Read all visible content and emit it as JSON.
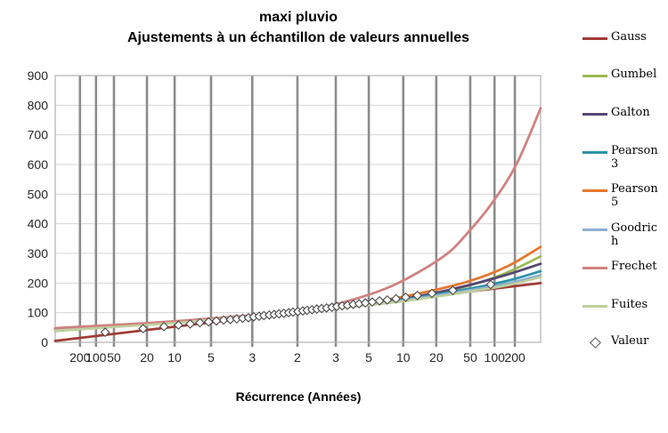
{
  "page": {
    "title_line1": "maxi pluvio",
    "title_line2": "Ajustements à un échantillon de valeurs annuelles",
    "xaxis_title": "Récurrence (Années)"
  },
  "style": {
    "h_grid_color": "#d4d4d4",
    "v_grid_color": "#8c8c8c",
    "border_color": "#b0b0b0",
    "tick_label_color": "#262626",
    "marker_stroke": "#4a4a4a",
    "marker_fill": "#ffffff"
  },
  "chart_data": {
    "type": "line",
    "title": "maxi pluvio",
    "subtitle": "Ajustements à un échantillon de valeurs annuelles",
    "xlabel": "Récurrence (Années)",
    "ylabel": "",
    "ylim": [
      0,
      900
    ],
    "ytick_step": 100,
    "grid": true,
    "legend_position": "right",
    "x_axis_type": "return-period-probability-scale",
    "x_ticks": [
      {
        "label": "200",
        "f": 0.051
      },
      {
        "label": "100",
        "f": 0.084
      },
      {
        "label": "50",
        "f": 0.121
      },
      {
        "label": "20",
        "f": 0.189
      },
      {
        "label": "10",
        "f": 0.246
      },
      {
        "label": "5",
        "f": 0.321
      },
      {
        "label": "3",
        "f": 0.406
      },
      {
        "label": "2",
        "f": 0.499
      },
      {
        "label": "3",
        "f": 0.578
      },
      {
        "label": "5",
        "f": 0.646
      },
      {
        "label": "10",
        "f": 0.717
      },
      {
        "label": "20",
        "f": 0.785
      },
      {
        "label": "50",
        "f": 0.855
      },
      {
        "label": "100",
        "f": 0.905
      },
      {
        "label": "200",
        "f": 0.947
      }
    ],
    "series": [
      {
        "name": "Gauss",
        "color": "#A03C36",
        "width": 2.8,
        "points": [
          [
            0,
            5
          ],
          [
            0.5,
            102
          ],
          [
            1,
            200
          ]
        ]
      },
      {
        "name": "Gumbel",
        "color": "#9BB950",
        "width": 2.6,
        "points": [
          [
            0,
            38
          ],
          [
            0.2,
            62
          ],
          [
            0.35,
            80
          ],
          [
            0.5,
            103
          ],
          [
            0.65,
            130
          ],
          [
            0.75,
            152
          ],
          [
            0.85,
            190
          ],
          [
            0.93,
            235
          ],
          [
            1,
            290
          ]
        ]
      },
      {
        "name": "Galton",
        "color": "#564773",
        "width": 2.8,
        "points": [
          [
            0,
            41
          ],
          [
            0.2,
            64
          ],
          [
            0.35,
            82
          ],
          [
            0.5,
            103
          ],
          [
            0.65,
            132
          ],
          [
            0.75,
            156
          ],
          [
            0.85,
            192
          ],
          [
            0.93,
            228
          ],
          [
            1,
            265
          ]
        ]
      },
      {
        "name": "Pearson 3",
        "color": "#2E93A8",
        "width": 2.8,
        "points": [
          [
            0,
            42
          ],
          [
            0.25,
            68
          ],
          [
            0.5,
            104
          ],
          [
            0.7,
            140
          ],
          [
            0.85,
            180
          ],
          [
            0.93,
            207
          ],
          [
            1,
            240
          ]
        ]
      },
      {
        "name": "Pearson 5",
        "color": "#E5772E",
        "width": 2.8,
        "points": [
          [
            0,
            45
          ],
          [
            0.25,
            68
          ],
          [
            0.5,
            104
          ],
          [
            0.65,
            135
          ],
          [
            0.75,
            165
          ],
          [
            0.85,
            205
          ],
          [
            0.93,
            255
          ],
          [
            1,
            322
          ]
        ]
      },
      {
        "name": "Goodrich",
        "color": "#8FAFD0",
        "width": 2.6,
        "points": [
          [
            0,
            43
          ],
          [
            0.25,
            68
          ],
          [
            0.5,
            104
          ],
          [
            0.7,
            138
          ],
          [
            0.85,
            175
          ],
          [
            0.93,
            198
          ],
          [
            1,
            227
          ]
        ]
      },
      {
        "name": "Frechet",
        "color": "#D0827F",
        "width": 2.8,
        "points": [
          [
            0,
            48
          ],
          [
            0.2,
            66
          ],
          [
            0.35,
            84
          ],
          [
            0.5,
            105
          ],
          [
            0.6,
            138
          ],
          [
            0.7,
            195
          ],
          [
            0.8,
            290
          ],
          [
            0.85,
            370
          ],
          [
            0.9,
            470
          ],
          [
            0.95,
            600
          ],
          [
            1,
            790
          ]
        ]
      },
      {
        "name": "Fuites",
        "color": "#BFCF9C",
        "width": 2.6,
        "points": [
          [
            0,
            39
          ],
          [
            0.25,
            66
          ],
          [
            0.5,
            102
          ],
          [
            0.7,
            135
          ],
          [
            0.85,
            170
          ],
          [
            0.93,
            192
          ],
          [
            1,
            220
          ]
        ]
      }
    ],
    "markers": {
      "name": "Valeur",
      "points": [
        [
          0.103,
          34
        ],
        [
          0.181,
          46
        ],
        [
          0.224,
          53
        ],
        [
          0.254,
          58
        ],
        [
          0.278,
          62
        ],
        [
          0.298,
          66
        ],
        [
          0.316,
          69
        ],
        [
          0.332,
          72
        ],
        [
          0.347,
          75
        ],
        [
          0.361,
          77
        ],
        [
          0.374,
          79
        ],
        [
          0.386,
          81
        ],
        [
          0.398,
          83
        ],
        [
          0.409,
          86
        ],
        [
          0.42,
          88
        ],
        [
          0.43,
          90
        ],
        [
          0.441,
          92
        ],
        [
          0.451,
          94
        ],
        [
          0.461,
          96
        ],
        [
          0.471,
          98
        ],
        [
          0.481,
          100
        ],
        [
          0.49,
          102
        ],
        [
          0.5,
          104
        ],
        [
          0.51,
          106
        ],
        [
          0.519,
          108
        ],
        [
          0.529,
          110
        ],
        [
          0.539,
          112
        ],
        [
          0.549,
          114
        ],
        [
          0.559,
          116
        ],
        [
          0.57,
          118
        ],
        [
          0.58,
          121
        ],
        [
          0.591,
          123
        ],
        [
          0.602,
          125
        ],
        [
          0.614,
          128
        ],
        [
          0.626,
          130
        ],
        [
          0.639,
          133
        ],
        [
          0.653,
          136
        ],
        [
          0.668,
          140
        ],
        [
          0.684,
          143
        ],
        [
          0.702,
          147
        ],
        [
          0.722,
          152
        ],
        [
          0.746,
          158
        ],
        [
          0.776,
          165
        ],
        [
          0.819,
          175
        ],
        [
          0.897,
          195
        ]
      ]
    }
  },
  "legend": {
    "items": [
      {
        "label": "Gauss",
        "lines": "Gauss",
        "color": "#A03C36",
        "kind": "line",
        "y": 35
      },
      {
        "label": "Gumbel",
        "lines": "Gumbel",
        "color": "#9BB950",
        "kind": "line",
        "y": 77
      },
      {
        "label": "Galton",
        "lines": "Galton",
        "color": "#564773",
        "kind": "line",
        "y": 120
      },
      {
        "label": "Pearson 3",
        "lines": "Pearson\n3",
        "color": "#2E93A8",
        "kind": "line",
        "y": 163
      },
      {
        "label": "Pearson 5",
        "lines": "Pearson\n5",
        "color": "#E5772E",
        "kind": "line",
        "y": 206
      },
      {
        "label": "Goodrich",
        "lines": "Goodric\nh",
        "color": "#8FAFD0",
        "kind": "line",
        "y": 250
      },
      {
        "label": "Frechet",
        "lines": "Frechet",
        "color": "#D0827F",
        "kind": "line",
        "y": 293
      },
      {
        "label": "Fuites",
        "lines": "Fuites",
        "color": "#BFCF9C",
        "kind": "line",
        "y": 336
      },
      {
        "label": "Valeur",
        "lines": "Valeur",
        "color": "#555555",
        "kind": "marker",
        "y": 377
      }
    ]
  }
}
